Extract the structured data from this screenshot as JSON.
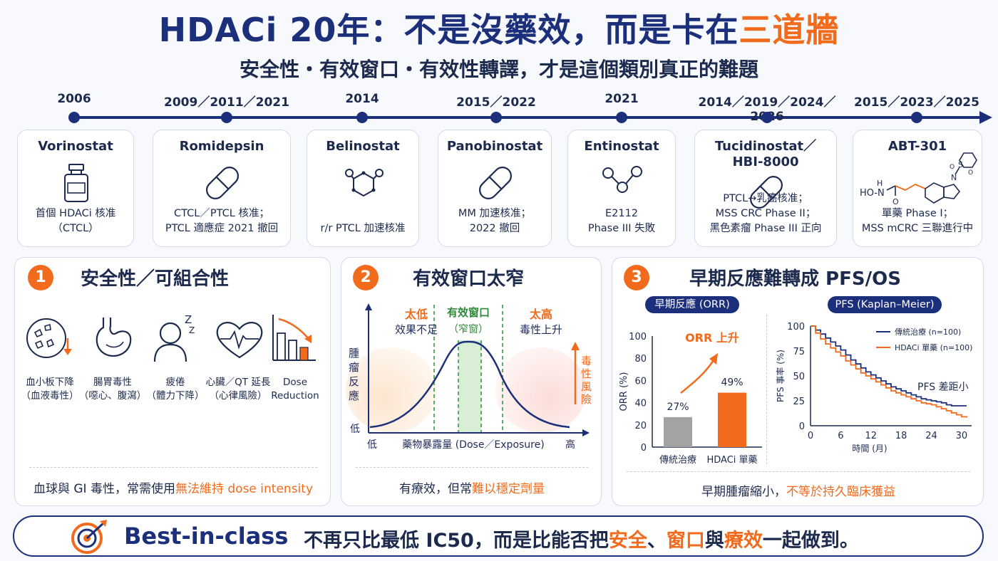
{
  "header": {
    "title_main": "HDACi 20年：不是沒藥效，而是卡在",
    "title_highlight": "三道牆",
    "subtitle": "安全性・有效窗口・有效性轉譯，才是這個類別真正的難題"
  },
  "timeline": [
    {
      "year": "2006",
      "drug": "Vorinostat",
      "icon": "vial-icon",
      "desc1": "首個 HDACi 核准",
      "desc2": "（CTCL）",
      "desc3": ""
    },
    {
      "year": "2009／2011／2021",
      "drug": "Romidepsin",
      "icon": "capsule-icon",
      "desc1": "CTCL／PTCL 核准；",
      "desc2": "PTCL 適應症 2021 撤回",
      "desc3": ""
    },
    {
      "year": "2014",
      "drug": "Belinostat",
      "icon": "molecule-ring-icon",
      "desc1": "r/r PTCL 加速核准",
      "desc2": "",
      "desc3": ""
    },
    {
      "year": "2015／2022",
      "drug": "Panobinostat",
      "icon": "capsule-icon",
      "desc1": "MM 加速核准；",
      "desc2": "2022 撤回",
      "desc3": ""
    },
    {
      "year": "2021",
      "drug": "Entinostat",
      "icon": "molecule-chain-icon",
      "desc1": "E2112",
      "desc2": "Phase III 失敗",
      "desc3": ""
    },
    {
      "year": "2014／2019／2024／2026",
      "drug": "Tucidinostat／",
      "drug2": "HBI-8000",
      "icon": "capsule-icon",
      "desc1": "PTCL→乳癌核准；",
      "desc2": "MSS CRC Phase II；",
      "desc3": "黑色素瘤 Phase III 正向"
    },
    {
      "year": "2015／2023／2025",
      "drug": "ABT-301",
      "icon": "chemical-structure-icon",
      "desc1": "單藥 Phase I；",
      "desc2": "MSS mCRC 三聯進行中",
      "desc3": "",
      "chem_label": "HO-N"
    }
  ],
  "panel1": {
    "num": "1",
    "title": "安全性／可組合性",
    "icons": [
      {
        "icon": "platelet-icon",
        "l1": "血小板下降",
        "l2": "（血液毒性）"
      },
      {
        "icon": "stomach-icon",
        "l1": "腸胃毒性",
        "l2": "（噁心、腹瀉）"
      },
      {
        "icon": "fatigue-icon",
        "l1": "疲倦",
        "l2": "（體力下降）"
      },
      {
        "icon": "heart-icon",
        "l1": "心臟／QT 延長",
        "l2": "（心律風險）"
      },
      {
        "icon": "dose-reduction-icon",
        "l1": "Dose",
        "l2": "Reduction"
      }
    ],
    "note_pre": "血球與 GI 毒性，常需使用",
    "note_hl": "無法維持 dose intensity"
  },
  "panel2": {
    "num": "2",
    "title": "有效窗口太窄",
    "low_label": "太低",
    "low_sub": "效果不足",
    "mid_label": "有效窗口",
    "mid_sub": "（窄窗）",
    "high_label": "太高",
    "high_sub": "毒性上升",
    "risk_label": "毒性風險",
    "y_label": "腫瘤反應",
    "y_low": "低",
    "x_low": "低",
    "x_label": "藥物暴露量 (Dose／Exposure)",
    "x_high": "高",
    "note_pre": "有療效，但常",
    "note_hl": "難以穩定劑量"
  },
  "panel3": {
    "num": "3",
    "title": "早期反應難轉成 PFS/OS",
    "orr_pill": "早期反應 (ORR)",
    "pfs_pill": "PFS (Kaplan–Meier)",
    "orr_up": "ORR 上升",
    "pfs_gap": "PFS 差距小",
    "note_pre": "早期腫瘤縮小，",
    "note_hl": "不等於持久臨床獲益"
  },
  "chart_data": [
    {
      "type": "bar",
      "categories": [
        "傳統治療",
        "HDACi 單藥"
      ],
      "values": [
        27,
        49
      ],
      "ylabel": "ORR (%)",
      "ylim": [
        0,
        100
      ],
      "yticks": [
        0,
        20,
        40,
        60,
        80,
        100
      ],
      "colors": [
        "#a3a3a3",
        "#f26a1b"
      ]
    },
    {
      "type": "line",
      "xlabel": "時間 (月)",
      "ylabel": "PFS 事率 (%)",
      "xlim": [
        0,
        32
      ],
      "ylim": [
        0,
        100
      ],
      "xticks": [
        0,
        6,
        12,
        18,
        24,
        30
      ],
      "yticks": [
        0,
        25,
        50,
        75,
        100
      ],
      "legend": "top-right",
      "series": [
        {
          "name": "傳統治療 (n=100)",
          "color": "#1c2f7a",
          "x": [
            0,
            1,
            2,
            3,
            4,
            5,
            6,
            7,
            8,
            9,
            10,
            11,
            12,
            13,
            14,
            15,
            16,
            17,
            18,
            19,
            20,
            21,
            22,
            23,
            24,
            25,
            26,
            27,
            28,
            30,
            31
          ],
          "y": [
            100,
            96,
            92,
            88,
            84,
            80,
            76,
            71,
            66,
            62,
            58,
            54,
            51,
            48,
            45,
            42,
            39,
            37,
            35,
            33,
            31,
            29,
            27,
            26,
            25,
            24,
            23,
            21,
            20,
            20,
            20
          ]
        },
        {
          "name": "HDACi 單藥 (n=100)",
          "color": "#f26a1b",
          "x": [
            0,
            1,
            2,
            3,
            4,
            5,
            6,
            7,
            8,
            9,
            10,
            11,
            12,
            13,
            14,
            15,
            16,
            17,
            18,
            19,
            20,
            21,
            22,
            23,
            24,
            25,
            26,
            27,
            28,
            29,
            30,
            31
          ],
          "y": [
            100,
            93,
            87,
            82,
            78,
            74,
            70,
            65,
            61,
            57,
            53,
            50,
            47,
            44,
            41,
            38,
            35,
            33,
            31,
            29,
            27,
            25,
            23,
            22,
            21,
            19,
            17,
            15,
            13,
            11,
            9,
            8
          ]
        }
      ]
    }
  ],
  "bottom": {
    "bold": "Best-in-class",
    "t1": "不再只比最低 IC50，而是比能否把",
    "hl1": "安全",
    "t2": "、",
    "hl2": "窗口",
    "t3": "與",
    "hl3": "療效",
    "t4": "一起做到。"
  }
}
